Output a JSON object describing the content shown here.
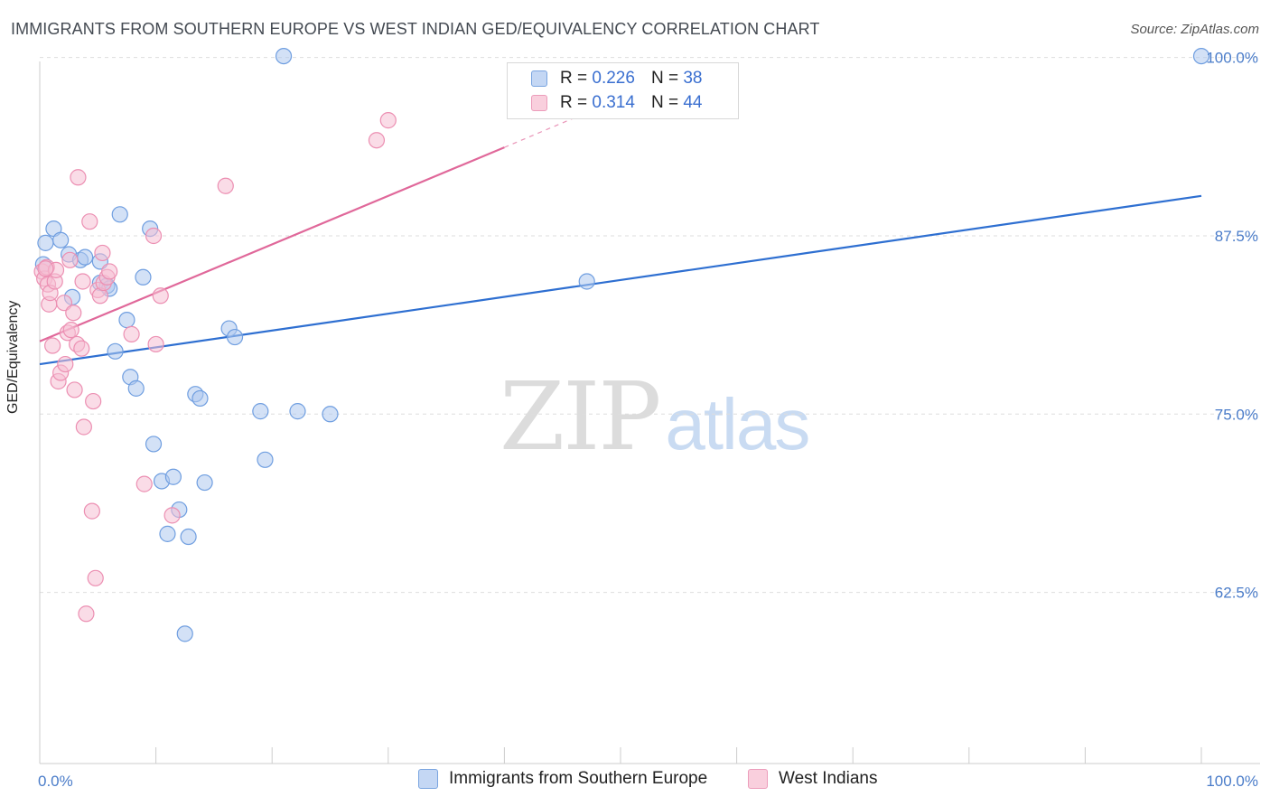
{
  "title": "IMMIGRANTS FROM SOUTHERN EUROPE VS WEST INDIAN GED/EQUIVALENCY CORRELATION CHART",
  "source": "Source: ZipAtlas.com",
  "watermark": {
    "zip": "ZIP",
    "atlas": "atlas"
  },
  "legend": {
    "r_label": "R =",
    "n_label": "N =",
    "series": [
      {
        "r": "0.226",
        "n": "38"
      },
      {
        "r": "0.314",
        "n": "44"
      }
    ]
  },
  "colors": {
    "blue_fill": "#aec9ef",
    "blue_stroke": "#6f9ee0",
    "blue_line": "#2e6fd1",
    "pink_fill": "#f6bfd3",
    "pink_stroke": "#ec8fb2",
    "pink_line": "#e0689a",
    "grid": "#dddddd",
    "axis_text": "#4a7cc9"
  },
  "chart_data": {
    "type": "scatter",
    "title": "IMMIGRANTS FROM SOUTHERN EUROPE VS WEST INDIAN GED/EQUIVALENCY CORRELATION CHART",
    "xlabel": "",
    "ylabel": "GED/Equivalency",
    "xlim": [
      0,
      100
    ],
    "ylim": [
      50.5,
      101.5
    ],
    "x_tick_labels": [
      "0.0%",
      "100.0%"
    ],
    "y_ticks": [
      62.5,
      75.0,
      87.5,
      100.0
    ],
    "y_tick_labels": [
      "62.5%",
      "75.0%",
      "87.5%",
      "100.0%"
    ],
    "grid": true,
    "legend_position": "top-center",
    "series": [
      {
        "name": "Immigrants from Southern Europe",
        "color": "blue",
        "trend": {
          "x0": 0,
          "y0": 78.5,
          "x1": 100,
          "y1": 90.3
        },
        "points": [
          {
            "x": 0.5,
            "y": 87.0
          },
          {
            "x": 1.2,
            "y": 88.0
          },
          {
            "x": 1.8,
            "y": 87.2
          },
          {
            "x": 2.5,
            "y": 86.2
          },
          {
            "x": 2.8,
            "y": 83.2
          },
          {
            "x": 3.5,
            "y": 85.8
          },
          {
            "x": 3.9,
            "y": 86.0
          },
          {
            "x": 5.2,
            "y": 85.7
          },
          {
            "x": 5.2,
            "y": 84.2
          },
          {
            "x": 5.8,
            "y": 84.0
          },
          {
            "x": 6.0,
            "y": 83.8
          },
          {
            "x": 6.5,
            "y": 79.4
          },
          {
            "x": 6.9,
            "y": 89.0
          },
          {
            "x": 7.5,
            "y": 81.6
          },
          {
            "x": 7.8,
            "y": 77.6
          },
          {
            "x": 8.3,
            "y": 76.8
          },
          {
            "x": 8.9,
            "y": 84.6
          },
          {
            "x": 9.5,
            "y": 88.0
          },
          {
            "x": 9.8,
            "y": 72.9
          },
          {
            "x": 10.5,
            "y": 70.3
          },
          {
            "x": 11.0,
            "y": 66.6
          },
          {
            "x": 11.5,
            "y": 70.6
          },
          {
            "x": 12.0,
            "y": 68.3
          },
          {
            "x": 12.5,
            "y": 59.6
          },
          {
            "x": 12.8,
            "y": 66.4
          },
          {
            "x": 13.4,
            "y": 76.4
          },
          {
            "x": 13.8,
            "y": 76.1
          },
          {
            "x": 14.2,
            "y": 70.2
          },
          {
            "x": 16.3,
            "y": 81.0
          },
          {
            "x": 16.8,
            "y": 80.4
          },
          {
            "x": 19.0,
            "y": 75.2
          },
          {
            "x": 19.4,
            "y": 71.8
          },
          {
            "x": 21.0,
            "y": 100.1
          },
          {
            "x": 22.2,
            "y": 75.2
          },
          {
            "x": 25.0,
            "y": 75.0
          },
          {
            "x": 47.1,
            "y": 84.3
          },
          {
            "x": 100.0,
            "y": 100.1
          },
          {
            "x": 0.3,
            "y": 85.5
          }
        ]
      },
      {
        "name": "West Indians",
        "color": "pink",
        "trend": {
          "x0": 0,
          "y0": 80.1,
          "x1": 40,
          "y1": 93.7
        },
        "trend_dashed_to": {
          "x": 56,
          "y": 99.2
        },
        "points": [
          {
            "x": 0.2,
            "y": 85.0
          },
          {
            "x": 0.4,
            "y": 84.5
          },
          {
            "x": 0.6,
            "y": 85.3
          },
          {
            "x": 0.7,
            "y": 84.1
          },
          {
            "x": 0.8,
            "y": 82.7
          },
          {
            "x": 0.9,
            "y": 83.5
          },
          {
            "x": 1.1,
            "y": 79.8
          },
          {
            "x": 1.3,
            "y": 84.3
          },
          {
            "x": 1.4,
            "y": 85.1
          },
          {
            "x": 1.6,
            "y": 77.3
          },
          {
            "x": 1.8,
            "y": 77.9
          },
          {
            "x": 2.1,
            "y": 82.8
          },
          {
            "x": 2.2,
            "y": 78.5
          },
          {
            "x": 2.4,
            "y": 80.7
          },
          {
            "x": 2.6,
            "y": 85.8
          },
          {
            "x": 2.7,
            "y": 80.9
          },
          {
            "x": 2.9,
            "y": 82.1
          },
          {
            "x": 3.0,
            "y": 76.7
          },
          {
            "x": 3.2,
            "y": 79.9
          },
          {
            "x": 3.3,
            "y": 91.6
          },
          {
            "x": 3.6,
            "y": 79.6
          },
          {
            "x": 3.7,
            "y": 84.3
          },
          {
            "x": 3.8,
            "y": 74.1
          },
          {
            "x": 4.3,
            "y": 88.5
          },
          {
            "x": 4.5,
            "y": 68.2
          },
          {
            "x": 4.6,
            "y": 75.9
          },
          {
            "x": 4.8,
            "y": 63.5
          },
          {
            "x": 5.0,
            "y": 83.7
          },
          {
            "x": 5.2,
            "y": 83.3
          },
          {
            "x": 5.4,
            "y": 86.3
          },
          {
            "x": 5.5,
            "y": 84.2
          },
          {
            "x": 5.8,
            "y": 84.6
          },
          {
            "x": 6.0,
            "y": 85.0
          },
          {
            "x": 4.0,
            "y": 61.0
          },
          {
            "x": 7.9,
            "y": 80.6
          },
          {
            "x": 9.0,
            "y": 70.1
          },
          {
            "x": 9.8,
            "y": 87.5
          },
          {
            "x": 10.0,
            "y": 79.9
          },
          {
            "x": 10.4,
            "y": 83.3
          },
          {
            "x": 11.4,
            "y": 67.9
          },
          {
            "x": 16.0,
            "y": 91.0
          },
          {
            "x": 29.0,
            "y": 94.2
          },
          {
            "x": 30.0,
            "y": 95.6
          },
          {
            "x": 0.5,
            "y": 85.2
          }
        ]
      }
    ]
  }
}
